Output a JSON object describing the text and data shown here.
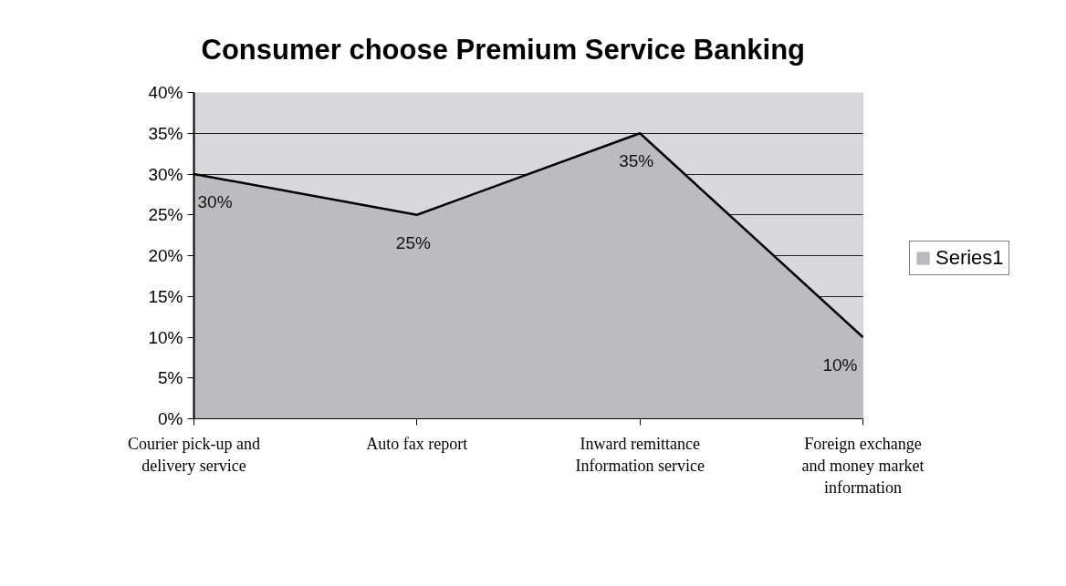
{
  "chart_data": {
    "type": "area",
    "title": "Consumer choose Premium Service Banking",
    "categories": [
      "Courier pick-up and delivery service",
      "Auto fax report",
      "Inward remittance Information service",
      "Foreign exchange and money market information"
    ],
    "series": [
      {
        "name": "Series1",
        "color": "#bcbbc0",
        "values": [
          30,
          25,
          35,
          10
        ],
        "value_labels": [
          "30%",
          "25%",
          "35%",
          "10%"
        ]
      }
    ],
    "ylim": [
      0,
      40
    ],
    "yticks": [
      {
        "value": 0,
        "label": "0%"
      },
      {
        "value": 5,
        "label": "5%"
      },
      {
        "value": 10,
        "label": "10%"
      },
      {
        "value": 15,
        "label": "15%"
      },
      {
        "value": 20,
        "label": "20%"
      },
      {
        "value": 25,
        "label": "25%"
      },
      {
        "value": 30,
        "label": "30%"
      },
      {
        "value": 35,
        "label": "35%"
      },
      {
        "value": 40,
        "label": "40%"
      }
    ],
    "grid": "y",
    "legend": "right"
  }
}
